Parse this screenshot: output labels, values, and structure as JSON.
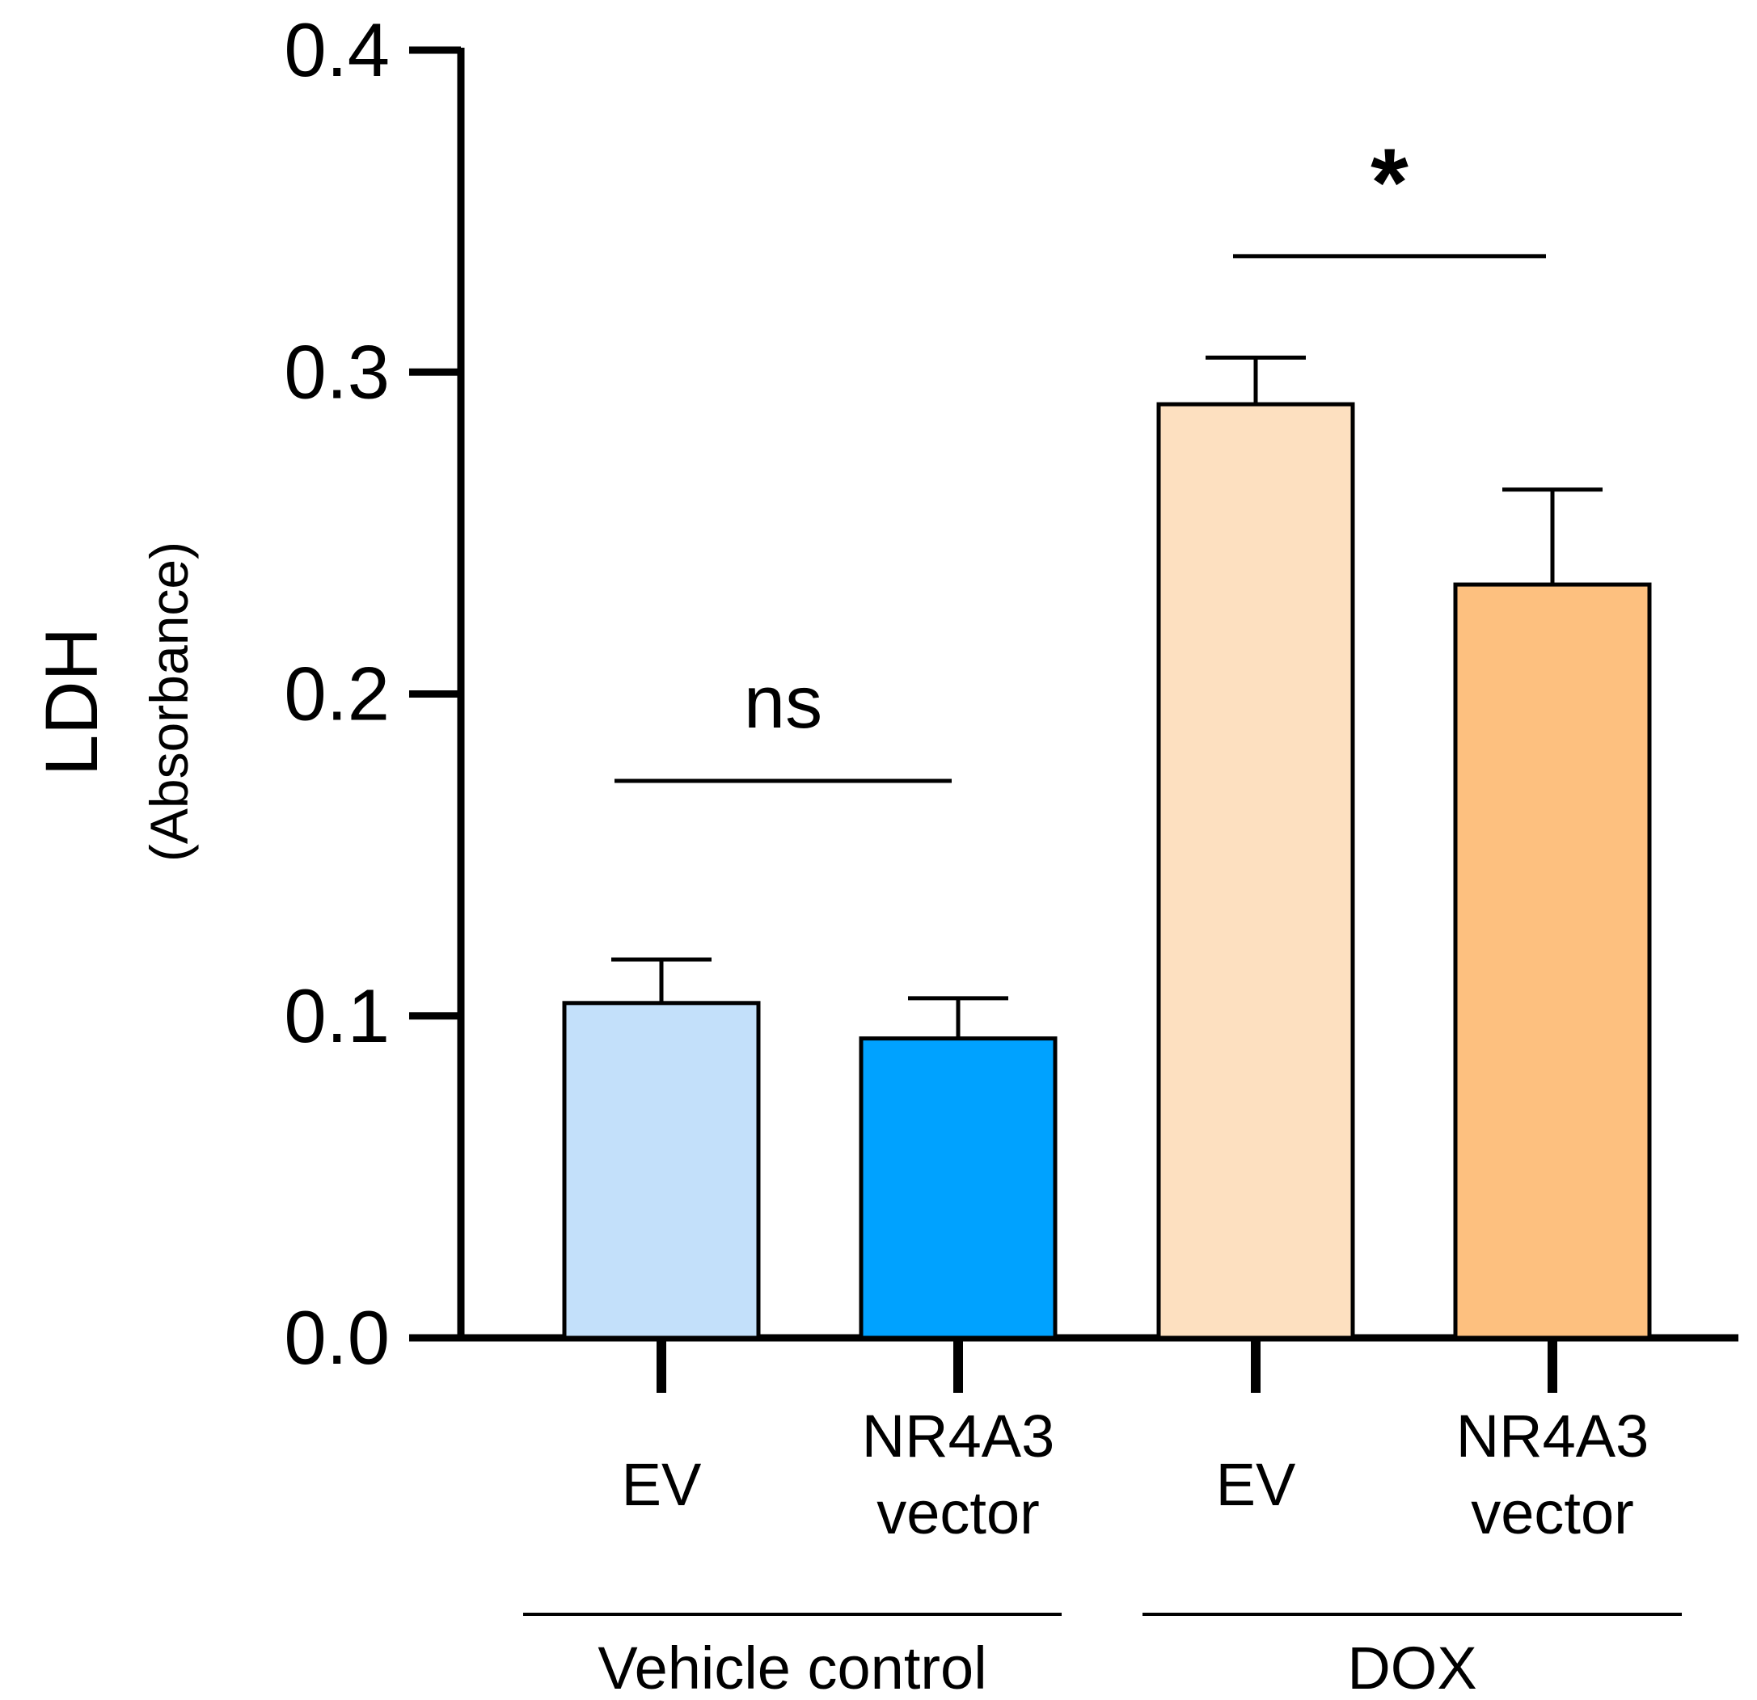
{
  "chart_data": {
    "type": "bar",
    "ylabel": "LDH",
    "ylabel_sub": "(Absorbance)",
    "ylim": [
      0,
      0.4
    ],
    "yticks": [
      {
        "value": 0.0,
        "label": "0.0"
      },
      {
        "value": 0.1,
        "label": "0.1"
      },
      {
        "value": 0.2,
        "label": "0.2"
      },
      {
        "value": 0.3,
        "label": "0.3"
      },
      {
        "value": 0.4,
        "label": "0.4"
      }
    ],
    "bars": [
      {
        "label_lines": [
          "EV"
        ],
        "group": "Vehicle control",
        "value": 0.104,
        "error": 0.0135,
        "color": "#c3e0fa"
      },
      {
        "label_lines": [
          "NR4A3",
          "vector"
        ],
        "group": "Vehicle control",
        "value": 0.093,
        "error": 0.0125,
        "color": "#00a2ff"
      },
      {
        "label_lines": [
          "EV"
        ],
        "group": "DOX",
        "value": 0.29,
        "error": 0.0145,
        "color": "#fde0c0"
      },
      {
        "label_lines": [
          "NR4A3",
          "vector"
        ],
        "group": "DOX",
        "value": 0.234,
        "error": 0.0295,
        "color": "#fdc07f"
      }
    ],
    "groups": [
      {
        "label": "Vehicle control",
        "bars": [
          0,
          1
        ]
      },
      {
        "label": "DOX",
        "bars": [
          2,
          3
        ]
      }
    ],
    "significance": [
      {
        "label": "ns",
        "from": 0,
        "to": 1,
        "y": 0.173
      },
      {
        "label": "*",
        "from": 2,
        "to": 3,
        "y": 0.336
      }
    ]
  }
}
